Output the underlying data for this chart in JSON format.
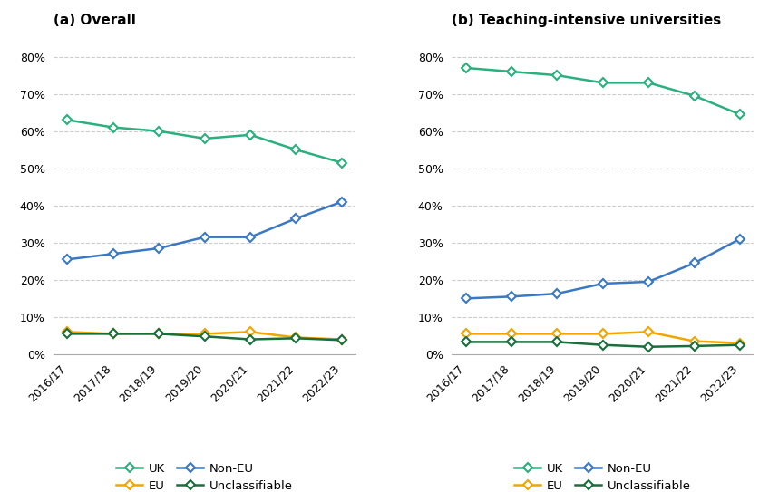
{
  "years": [
    "2016/17",
    "2017/18",
    "2018/19",
    "2019/20",
    "2020/21",
    "2021/22",
    "2022/23"
  ],
  "overall": {
    "UK": [
      0.63,
      0.61,
      0.6,
      0.58,
      0.59,
      0.55,
      0.515
    ],
    "EU": [
      0.06,
      0.055,
      0.055,
      0.055,
      0.06,
      0.045,
      0.04
    ],
    "Non_EU": [
      0.255,
      0.27,
      0.285,
      0.315,
      0.315,
      0.365,
      0.41
    ],
    "Unclassifiable": [
      0.055,
      0.055,
      0.055,
      0.048,
      0.04,
      0.043,
      0.038
    ]
  },
  "teaching": {
    "UK": [
      0.77,
      0.76,
      0.75,
      0.73,
      0.73,
      0.695,
      0.645
    ],
    "EU": [
      0.055,
      0.055,
      0.055,
      0.055,
      0.06,
      0.035,
      0.03
    ],
    "Non_EU": [
      0.15,
      0.155,
      0.163,
      0.19,
      0.195,
      0.245,
      0.31
    ],
    "Unclassifiable": [
      0.033,
      0.033,
      0.033,
      0.025,
      0.02,
      0.022,
      0.025
    ]
  },
  "colors": {
    "UK": "#2ab07f",
    "EU": "#f0a500",
    "Non_EU": "#3b78c3",
    "Unclassifiable": "#1a6e3c"
  },
  "title_a": "(a) Overall",
  "title_b": "(b) Teaching-intensive universities",
  "legend_labels": {
    "UK": "UK",
    "EU": "EU",
    "Non_EU": "Non-EU",
    "Unclassifiable": "Unclassifiable"
  },
  "ylim": [
    0,
    0.86
  ],
  "yticks": [
    0,
    0.1,
    0.2,
    0.3,
    0.4,
    0.5,
    0.6,
    0.7,
    0.8
  ],
  "background_color": "#ffffff"
}
